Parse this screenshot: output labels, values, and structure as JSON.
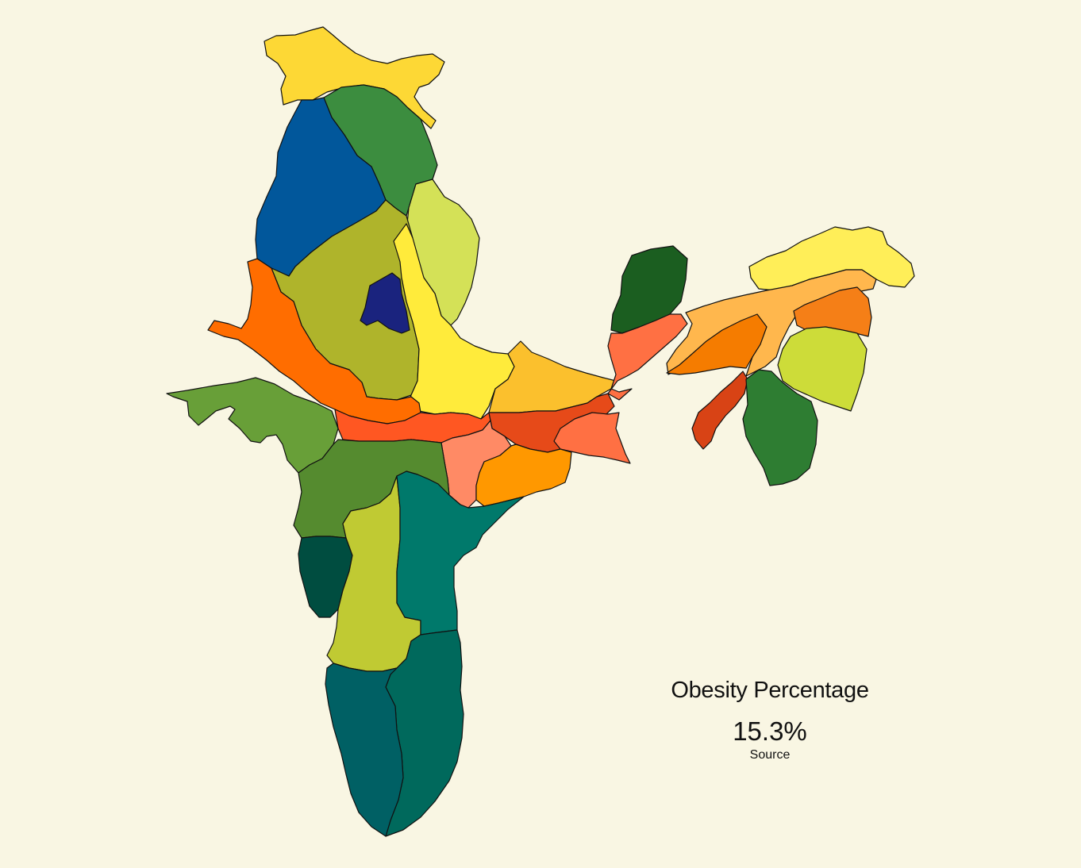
{
  "info": {
    "title": "Obesity Percentage",
    "value": "15.3%",
    "source_label": "Source"
  },
  "colors": {
    "background": "#f9f6e3",
    "border": "#111111",
    "text": "#111111"
  },
  "regions": [
    {
      "key": "jammu-kashmir",
      "color": "#fdd835"
    },
    {
      "key": "himachal",
      "color": "#3c8d3f"
    },
    {
      "key": "punjab",
      "color": "#01579b"
    },
    {
      "key": "uttarakhand",
      "color": "#d4e157"
    },
    {
      "key": "haryana",
      "color": "#afb42b"
    },
    {
      "key": "delhi",
      "color": "#1a237e"
    },
    {
      "key": "uttar-pradesh",
      "color": "#ffeb3b"
    },
    {
      "key": "rajasthan",
      "color": "#ff6d00"
    },
    {
      "key": "gujarat",
      "color": "#689f38"
    },
    {
      "key": "bihar",
      "color": "#fbc02d"
    },
    {
      "key": "madhya-pradesh",
      "color": "#ff5722"
    },
    {
      "key": "chhattisgarh",
      "color": "#ff8a65"
    },
    {
      "key": "jharkhand",
      "color": "#e64a19"
    },
    {
      "key": "west-bengal",
      "color": "#ff7043"
    },
    {
      "key": "odisha",
      "color": "#ff9800"
    },
    {
      "key": "maharashtra",
      "color": "#558b2f"
    },
    {
      "key": "goa",
      "color": "#004d40"
    },
    {
      "key": "karnataka",
      "color": "#c0ca33"
    },
    {
      "key": "telangana-andhra",
      "color": "#00796b"
    },
    {
      "key": "tamil-nadu",
      "color": "#00695c"
    },
    {
      "key": "kerala",
      "color": "#006064"
    },
    {
      "key": "sikkim",
      "color": "#1b5e20"
    },
    {
      "key": "siliguri-corridor",
      "color": "#ff7043"
    },
    {
      "key": "arunachal",
      "color": "#ffee58"
    },
    {
      "key": "assam",
      "color": "#ffb74d"
    },
    {
      "key": "meghalaya",
      "color": "#f57c00"
    },
    {
      "key": "nagaland",
      "color": "#f57f17"
    },
    {
      "key": "manipur",
      "color": "#cddc39"
    },
    {
      "key": "tripura",
      "color": "#d84315"
    },
    {
      "key": "mizoram",
      "color": "#2e7d32"
    }
  ]
}
